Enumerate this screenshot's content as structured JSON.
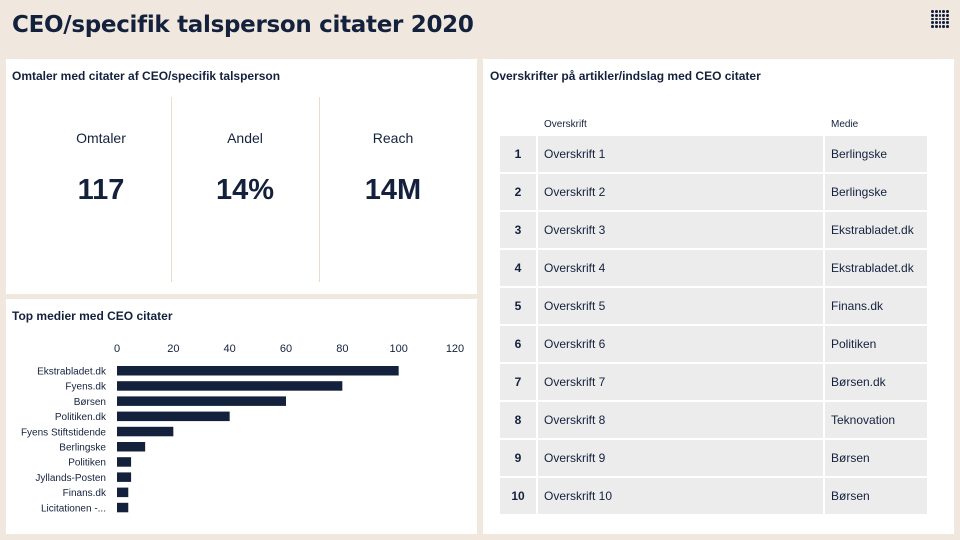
{
  "page": {
    "title": "CEO/specifik talsperson citater 2020"
  },
  "colors": {
    "background": "#f0e8de",
    "navy": "#14213d",
    "row_bg": "#ececec",
    "divider": "#e8dccb"
  },
  "kpi_card": {
    "title": "Omtaler med citater af CEO/specifik talsperson",
    "kpis": [
      {
        "label": "Omtaler",
        "value": "117"
      },
      {
        "label": "Andel",
        "value": "14%"
      },
      {
        "label": "Reach",
        "value": "14M"
      }
    ]
  },
  "bar_card": {
    "title": "Top medier med CEO citater"
  },
  "chart_data": {
    "type": "bar",
    "orientation": "horizontal",
    "categories": [
      "Ekstrabladet.dk",
      "Fyens.dk",
      "Børsen",
      "Politiken.dk",
      "Fyens Stiftstidende",
      "Berlingske",
      "Politiken",
      "Jyllands-Posten",
      "Finans.dk",
      "Licitationen -..."
    ],
    "values": [
      100,
      80,
      60,
      40,
      20,
      10,
      5,
      5,
      4,
      4
    ],
    "xlim": [
      0,
      120
    ],
    "xticks": [
      0,
      20,
      40,
      60,
      80,
      100,
      120
    ],
    "x_axis_position": "top",
    "color": "#14213d",
    "grid": false,
    "title": "",
    "xlabel": "",
    "ylabel": ""
  },
  "table_card": {
    "title": "Overskrifter på artikler/indslag med CEO citater",
    "columns": [
      "",
      "Overskrift",
      "Medie"
    ],
    "rows": [
      {
        "num": "1",
        "headline": "Overskrift 1",
        "media": "Berlingske"
      },
      {
        "num": "2",
        "headline": "Overskrift 2",
        "media": "Berlingske"
      },
      {
        "num": "3",
        "headline": "Overskrift 3",
        "media": "Ekstrabladet.dk"
      },
      {
        "num": "4",
        "headline": "Overskrift 4",
        "media": "Ekstrabladet.dk"
      },
      {
        "num": "5",
        "headline": "Overskrift 5",
        "media": "Finans.dk"
      },
      {
        "num": "6",
        "headline": "Overskrift 6",
        "media": "Politiken"
      },
      {
        "num": "7",
        "headline": "Overskrift 7",
        "media": "Børsen.dk"
      },
      {
        "num": "8",
        "headline": "Overskrift 8",
        "media": "Teknovation"
      },
      {
        "num": "9",
        "headline": "Overskrift 9",
        "media": "Børsen"
      },
      {
        "num": "10",
        "headline": "Overskrift 10",
        "media": "Børsen"
      }
    ]
  },
  "icons": {
    "logo": "dot-grid-logo-icon"
  }
}
